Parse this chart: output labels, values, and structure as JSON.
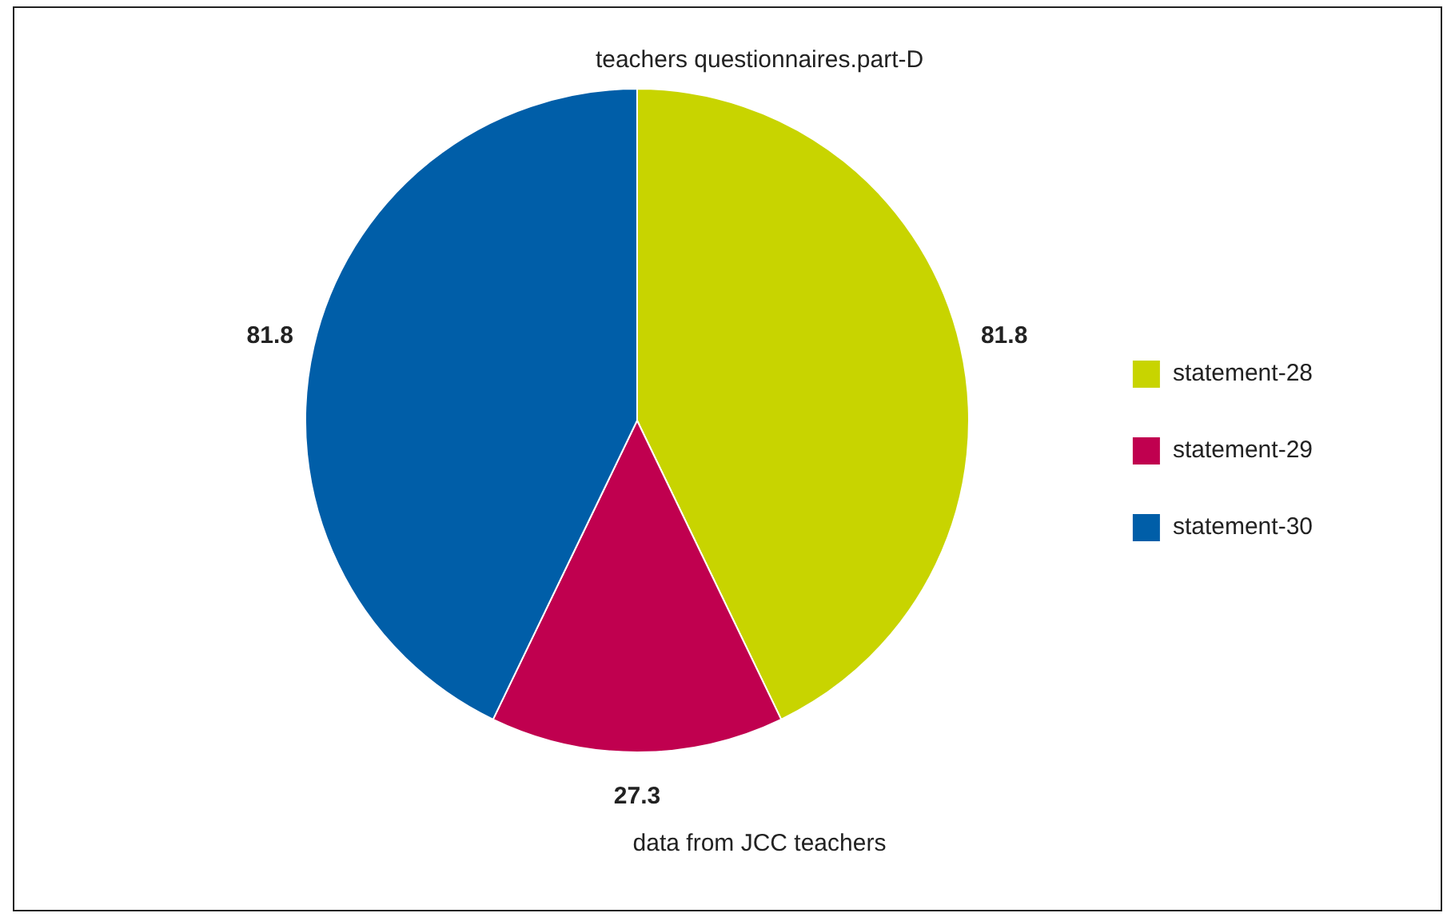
{
  "chart_data": {
    "type": "pie",
    "title": "teachers questionnaires.part-D",
    "categories": [
      "statement-28",
      "statement-29",
      "statement-30"
    ],
    "values": [
      81.8,
      27.3,
      81.8
    ],
    "colors": [
      "#c8d400",
      "#c0004f",
      "#005ea8"
    ],
    "data_labels": true,
    "legend": "right",
    "annotations": [
      "data from JCC teachers"
    ]
  }
}
